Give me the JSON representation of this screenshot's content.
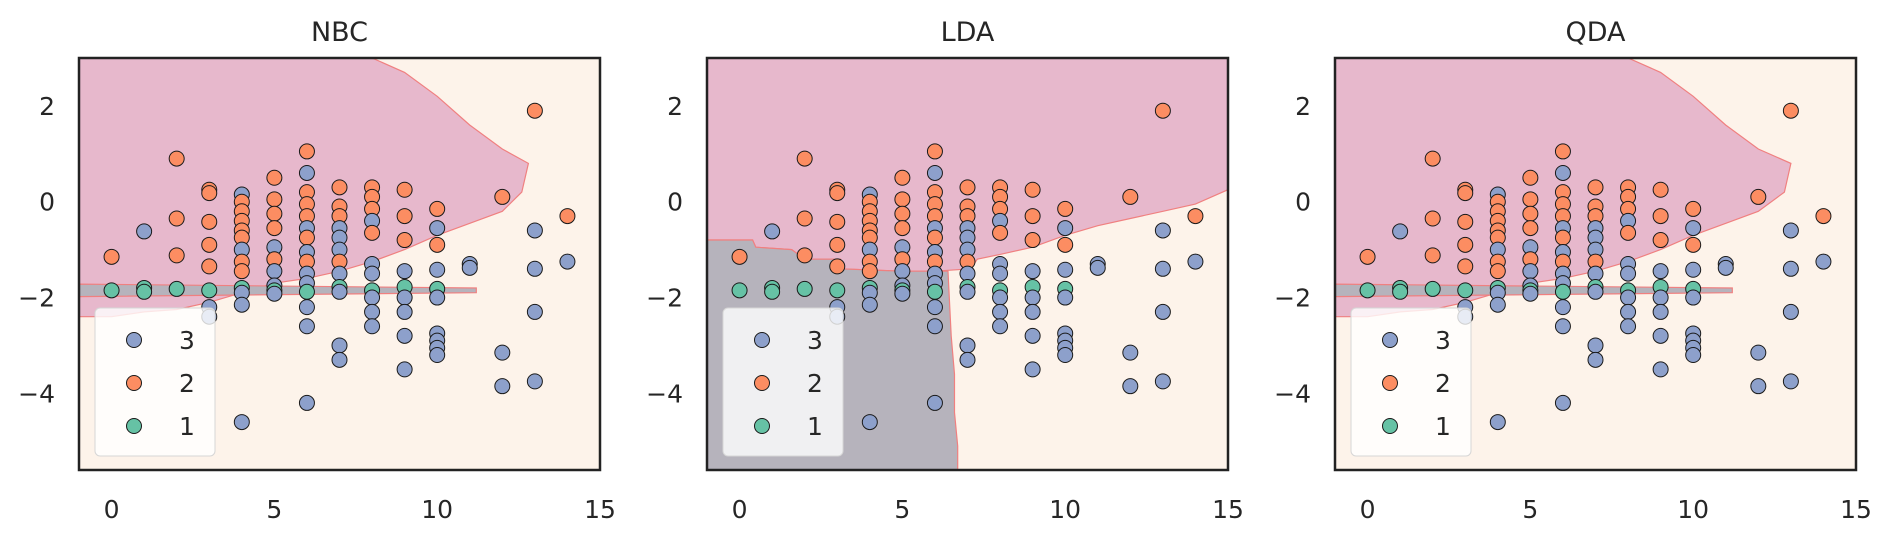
{
  "colors": {
    "class_3": "#8da0cb",
    "class_2": "#fc8d62",
    "class_1": "#66c2a5",
    "region_3": "#fdf3ea",
    "region_2": "#e7b8cc",
    "region_1": "#b6b3bc",
    "boundary": "#f08080",
    "frame": "#222222"
  },
  "chart_data": [
    {
      "type": "scatter",
      "title": "NBC",
      "xlim": [
        -1,
        15
      ],
      "ylim": [
        -5.6,
        3
      ],
      "xticks": [
        "0",
        "5",
        "10",
        "15"
      ],
      "yticks": [
        "2",
        "0",
        "−2",
        "−4"
      ],
      "legend": {
        "placement": "lower-left",
        "entries": [
          "3",
          "2",
          "1"
        ]
      },
      "regions": {
        "class_2": [
          [
            -1,
            3
          ],
          [
            8,
            3
          ],
          [
            9,
            2.7
          ],
          [
            10,
            2.2
          ],
          [
            11,
            1.6
          ],
          [
            12,
            1.1
          ],
          [
            12.8,
            0.8
          ],
          [
            12.6,
            0.2
          ],
          [
            12,
            -0.2
          ],
          [
            11,
            -0.45
          ],
          [
            10,
            -0.7
          ],
          [
            9,
            -1.0
          ],
          [
            8,
            -1.25
          ],
          [
            7,
            -1.45
          ],
          [
            6,
            -1.6
          ],
          [
            5,
            -1.7
          ],
          [
            4,
            -1.9
          ],
          [
            3,
            -2.1
          ],
          [
            2,
            -2.25
          ],
          [
            1,
            -2.3
          ],
          [
            0,
            -2.4
          ],
          [
            -1,
            -2.4
          ]
        ],
        "class_1": [
          [
            -1,
            -1.72
          ],
          [
            11.2,
            -1.8
          ],
          [
            11.2,
            -1.9
          ],
          [
            -1,
            -1.98
          ]
        ]
      },
      "points": [
        {
          "x": 0,
          "y": -1.15,
          "c": 2
        },
        {
          "x": 0,
          "y": -1.85,
          "c": 1
        },
        {
          "x": 1,
          "y": -0.62,
          "c": 3
        },
        {
          "x": 1,
          "y": -1.8,
          "c": 1
        },
        {
          "x": 1,
          "y": -1.88,
          "c": 1
        },
        {
          "x": 2,
          "y": 0.9,
          "c": 2
        },
        {
          "x": 2,
          "y": -0.35,
          "c": 2
        },
        {
          "x": 2,
          "y": -1.12,
          "c": 2
        },
        {
          "x": 2,
          "y": -1.82,
          "c": 1
        },
        {
          "x": 3,
          "y": 0.25,
          "c": 2
        },
        {
          "x": 3,
          "y": 0.18,
          "c": 2
        },
        {
          "x": 3,
          "y": -0.42,
          "c": 2
        },
        {
          "x": 3,
          "y": -0.9,
          "c": 2
        },
        {
          "x": 3,
          "y": -1.35,
          "c": 2
        },
        {
          "x": 3,
          "y": -1.85,
          "c": 1
        },
        {
          "x": 3,
          "y": -2.2,
          "c": 3
        },
        {
          "x": 3,
          "y": -2.4,
          "c": 3
        },
        {
          "x": 4,
          "y": 0.15,
          "c": 3
        },
        {
          "x": 4,
          "y": 0.0,
          "c": 2
        },
        {
          "x": 4,
          "y": -0.2,
          "c": 2
        },
        {
          "x": 4,
          "y": -0.4,
          "c": 2
        },
        {
          "x": 4,
          "y": -0.6,
          "c": 2
        },
        {
          "x": 4,
          "y": -0.75,
          "c": 2
        },
        {
          "x": 4,
          "y": -1.0,
          "c": 3
        },
        {
          "x": 4,
          "y": -1.25,
          "c": 2
        },
        {
          "x": 4,
          "y": -1.45,
          "c": 2
        },
        {
          "x": 4,
          "y": -1.8,
          "c": 1
        },
        {
          "x": 4,
          "y": -1.9,
          "c": 3
        },
        {
          "x": 4,
          "y": -2.15,
          "c": 3
        },
        {
          "x": 4,
          "y": -4.6,
          "c": 3
        },
        {
          "x": 5,
          "y": 0.5,
          "c": 2
        },
        {
          "x": 5,
          "y": 0.05,
          "c": 2
        },
        {
          "x": 5,
          "y": -0.25,
          "c": 2
        },
        {
          "x": 5,
          "y": -0.55,
          "c": 2
        },
        {
          "x": 5,
          "y": -0.95,
          "c": 3
        },
        {
          "x": 5,
          "y": -1.2,
          "c": 2
        },
        {
          "x": 5,
          "y": -1.45,
          "c": 3
        },
        {
          "x": 5,
          "y": -1.75,
          "c": 3
        },
        {
          "x": 5,
          "y": -1.85,
          "c": 1
        },
        {
          "x": 5,
          "y": -1.92,
          "c": 3
        },
        {
          "x": 6,
          "y": 1.05,
          "c": 2
        },
        {
          "x": 6,
          "y": 0.6,
          "c": 3
        },
        {
          "x": 6,
          "y": 0.2,
          "c": 2
        },
        {
          "x": 6,
          "y": -0.05,
          "c": 2
        },
        {
          "x": 6,
          "y": -0.3,
          "c": 2
        },
        {
          "x": 6,
          "y": -0.55,
          "c": 3
        },
        {
          "x": 6,
          "y": -0.75,
          "c": 2
        },
        {
          "x": 6,
          "y": -1.05,
          "c": 3
        },
        {
          "x": 6,
          "y": -1.25,
          "c": 2
        },
        {
          "x": 6,
          "y": -1.5,
          "c": 3
        },
        {
          "x": 6,
          "y": -1.7,
          "c": 3
        },
        {
          "x": 6,
          "y": -1.88,
          "c": 1
        },
        {
          "x": 6,
          "y": -2.2,
          "c": 3
        },
        {
          "x": 6,
          "y": -2.6,
          "c": 3
        },
        {
          "x": 6,
          "y": -4.2,
          "c": 3
        },
        {
          "x": 7,
          "y": 0.3,
          "c": 2
        },
        {
          "x": 7,
          "y": -0.1,
          "c": 2
        },
        {
          "x": 7,
          "y": -0.3,
          "c": 2
        },
        {
          "x": 7,
          "y": -0.55,
          "c": 3
        },
        {
          "x": 7,
          "y": -0.75,
          "c": 3
        },
        {
          "x": 7,
          "y": -1.0,
          "c": 3
        },
        {
          "x": 7,
          "y": -1.25,
          "c": 2
        },
        {
          "x": 7,
          "y": -1.5,
          "c": 3
        },
        {
          "x": 7,
          "y": -1.78,
          "c": 1
        },
        {
          "x": 7,
          "y": -1.88,
          "c": 3
        },
        {
          "x": 7,
          "y": -3.0,
          "c": 3
        },
        {
          "x": 7,
          "y": -3.3,
          "c": 3
        },
        {
          "x": 8,
          "y": 0.3,
          "c": 2
        },
        {
          "x": 8,
          "y": 0.1,
          "c": 2
        },
        {
          "x": 8,
          "y": -0.15,
          "c": 2
        },
        {
          "x": 8,
          "y": -0.4,
          "c": 3
        },
        {
          "x": 8,
          "y": -0.65,
          "c": 2
        },
        {
          "x": 8,
          "y": -1.3,
          "c": 3
        },
        {
          "x": 8,
          "y": -1.5,
          "c": 3
        },
        {
          "x": 8,
          "y": -1.85,
          "c": 1
        },
        {
          "x": 8,
          "y": -2.0,
          "c": 3
        },
        {
          "x": 8,
          "y": -2.3,
          "c": 3
        },
        {
          "x": 8,
          "y": -2.6,
          "c": 3
        },
        {
          "x": 9,
          "y": 0.25,
          "c": 2
        },
        {
          "x": 9,
          "y": -0.3,
          "c": 2
        },
        {
          "x": 9,
          "y": -0.8,
          "c": 2
        },
        {
          "x": 9,
          "y": -1.45,
          "c": 3
        },
        {
          "x": 9,
          "y": -1.78,
          "c": 1
        },
        {
          "x": 9,
          "y": -2.0,
          "c": 3
        },
        {
          "x": 9,
          "y": -2.3,
          "c": 3
        },
        {
          "x": 9,
          "y": -2.8,
          "c": 3
        },
        {
          "x": 9,
          "y": -3.5,
          "c": 3
        },
        {
          "x": 10,
          "y": -0.15,
          "c": 2
        },
        {
          "x": 10,
          "y": -0.55,
          "c": 3
        },
        {
          "x": 10,
          "y": -0.9,
          "c": 2
        },
        {
          "x": 10,
          "y": -1.42,
          "c": 3
        },
        {
          "x": 10,
          "y": -1.82,
          "c": 1
        },
        {
          "x": 10,
          "y": -2.0,
          "c": 3
        },
        {
          "x": 10,
          "y": -2.75,
          "c": 3
        },
        {
          "x": 10,
          "y": -2.9,
          "c": 3
        },
        {
          "x": 10,
          "y": -3.05,
          "c": 3
        },
        {
          "x": 10,
          "y": -3.2,
          "c": 3
        },
        {
          "x": 11,
          "y": -1.3,
          "c": 3
        },
        {
          "x": 11,
          "y": -1.38,
          "c": 3
        },
        {
          "x": 12,
          "y": 0.1,
          "c": 2
        },
        {
          "x": 12,
          "y": -3.15,
          "c": 3
        },
        {
          "x": 12,
          "y": -3.85,
          "c": 3
        },
        {
          "x": 13,
          "y": 1.9,
          "c": 2
        },
        {
          "x": 13,
          "y": -0.6,
          "c": 3
        },
        {
          "x": 13,
          "y": -1.4,
          "c": 3
        },
        {
          "x": 13,
          "y": -2.3,
          "c": 3
        },
        {
          "x": 13,
          "y": -3.75,
          "c": 3
        },
        {
          "x": 14,
          "y": -0.3,
          "c": 2
        },
        {
          "x": 14,
          "y": -1.25,
          "c": 3
        }
      ]
    },
    {
      "type": "scatter",
      "title": "LDA",
      "xlim": [
        -1,
        15
      ],
      "ylim": [
        -5.6,
        3
      ],
      "xticks": [
        "0",
        "5",
        "10",
        "15"
      ],
      "yticks": [
        "2",
        "0",
        "−2",
        "−4"
      ],
      "legend": {
        "placement": "lower-left",
        "entries": [
          "3",
          "2",
          "1"
        ]
      },
      "regions": {
        "class_2": [
          [
            -1,
            3
          ],
          [
            15,
            3
          ],
          [
            15,
            0.25
          ],
          [
            14,
            -0.05
          ],
          [
            13,
            -0.2
          ],
          [
            12,
            -0.35
          ],
          [
            11,
            -0.5
          ],
          [
            10,
            -0.7
          ],
          [
            9,
            -0.95
          ],
          [
            8,
            -1.1
          ],
          [
            7.3,
            -1.2
          ],
          [
            7.1,
            -1.4
          ],
          [
            6,
            -1.45
          ],
          [
            5,
            -1.45
          ],
          [
            3.1,
            -1.4
          ],
          [
            3.1,
            -1.2
          ],
          [
            2,
            -1.2
          ],
          [
            1.6,
            -1.0
          ],
          [
            0.5,
            -0.95
          ],
          [
            0.4,
            -0.8
          ],
          [
            -1,
            -0.8
          ]
        ],
        "class_1": [
          [
            -1,
            -0.8
          ],
          [
            0.4,
            -0.8
          ],
          [
            0.5,
            -0.95
          ],
          [
            1.6,
            -1.0
          ],
          [
            2,
            -1.2
          ],
          [
            3.1,
            -1.2
          ],
          [
            3.1,
            -1.4
          ],
          [
            5,
            -1.45
          ],
          [
            6,
            -1.45
          ],
          [
            6.4,
            -1.45
          ],
          [
            6.5,
            -2.8
          ],
          [
            6.6,
            -3.6
          ],
          [
            6.6,
            -4.4
          ],
          [
            6.7,
            -5.1
          ],
          [
            6.7,
            -5.6
          ],
          [
            -1,
            -5.6
          ]
        ]
      },
      "points": "same"
    },
    {
      "type": "scatter",
      "title": "QDA",
      "xlim": [
        -1,
        15
      ],
      "ylim": [
        -5.6,
        3
      ],
      "xticks": [
        "0",
        "5",
        "10",
        "15"
      ],
      "yticks": [
        "2",
        "0",
        "−2",
        "−4"
      ],
      "legend": {
        "placement": "lower-left",
        "entries": [
          "3",
          "2",
          "1"
        ]
      },
      "regions": {
        "class_2": [
          [
            -1,
            3
          ],
          [
            8,
            3
          ],
          [
            9,
            2.7
          ],
          [
            10,
            2.2
          ],
          [
            11,
            1.6
          ],
          [
            12,
            1.1
          ],
          [
            13,
            0.8
          ],
          [
            12.8,
            0.2
          ],
          [
            12,
            -0.2
          ],
          [
            11,
            -0.45
          ],
          [
            10,
            -0.7
          ],
          [
            9,
            -1.0
          ],
          [
            8,
            -1.25
          ],
          [
            7,
            -1.45
          ],
          [
            6,
            -1.6
          ],
          [
            5,
            -1.7
          ],
          [
            4,
            -1.9
          ],
          [
            3,
            -2.1
          ],
          [
            2,
            -2.25
          ],
          [
            1,
            -2.3
          ],
          [
            0,
            -2.4
          ],
          [
            -1,
            -2.4
          ]
        ],
        "class_1": [
          [
            -1,
            -1.72
          ],
          [
            11.2,
            -1.8
          ],
          [
            11.2,
            -1.9
          ],
          [
            -1,
            -1.98
          ]
        ]
      },
      "points": "same"
    }
  ]
}
